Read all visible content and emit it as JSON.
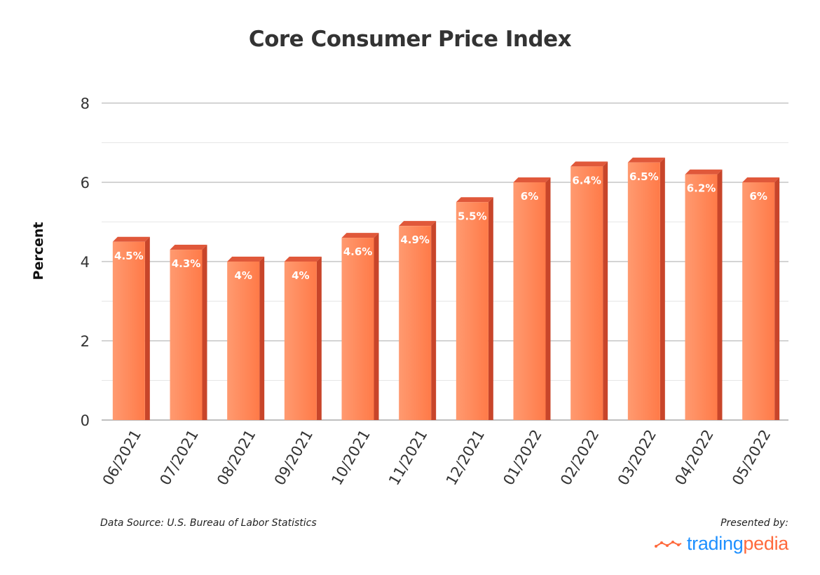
{
  "chart_data": {
    "type": "bar",
    "title": "Core Consumer Price Index",
    "xlabel": "",
    "ylabel": "Percent",
    "categories": [
      "06/2021",
      "07/2021",
      "08/2021",
      "09/2021",
      "10/2021",
      "11/2021",
      "12/2021",
      "01/2022",
      "02/2022",
      "03/2022",
      "04/2022",
      "05/2022"
    ],
    "values": [
      4.5,
      4.3,
      4.0,
      4.0,
      4.6,
      4.9,
      5.5,
      6.0,
      6.4,
      6.5,
      6.2,
      6.0
    ],
    "data_labels": [
      "4.5%",
      "4.3%",
      "4%",
      "4%",
      "4.6%",
      "4.9%",
      "5.5%",
      "6%",
      "6.4%",
      "6.5%",
      "6.2%",
      "6%"
    ],
    "ylim": [
      0,
      8
    ],
    "yticks": [
      0,
      2,
      4,
      6,
      8
    ],
    "grid": true,
    "colors": {
      "bar_front": "#ff7f50",
      "bar_light": "#ff9a70",
      "bar_side": "#c8452a",
      "bar_top": "#e0583a",
      "grid": "#bbbbbb",
      "minor_grid": "#e6e6e6"
    }
  },
  "footer": {
    "source": "Data Source: U.S. Bureau of Labor Statistics",
    "presented_by": "Presented by:",
    "brand_part1": "trading",
    "brand_part2": "pedia",
    "brand_icon": "line-chart-icon"
  }
}
